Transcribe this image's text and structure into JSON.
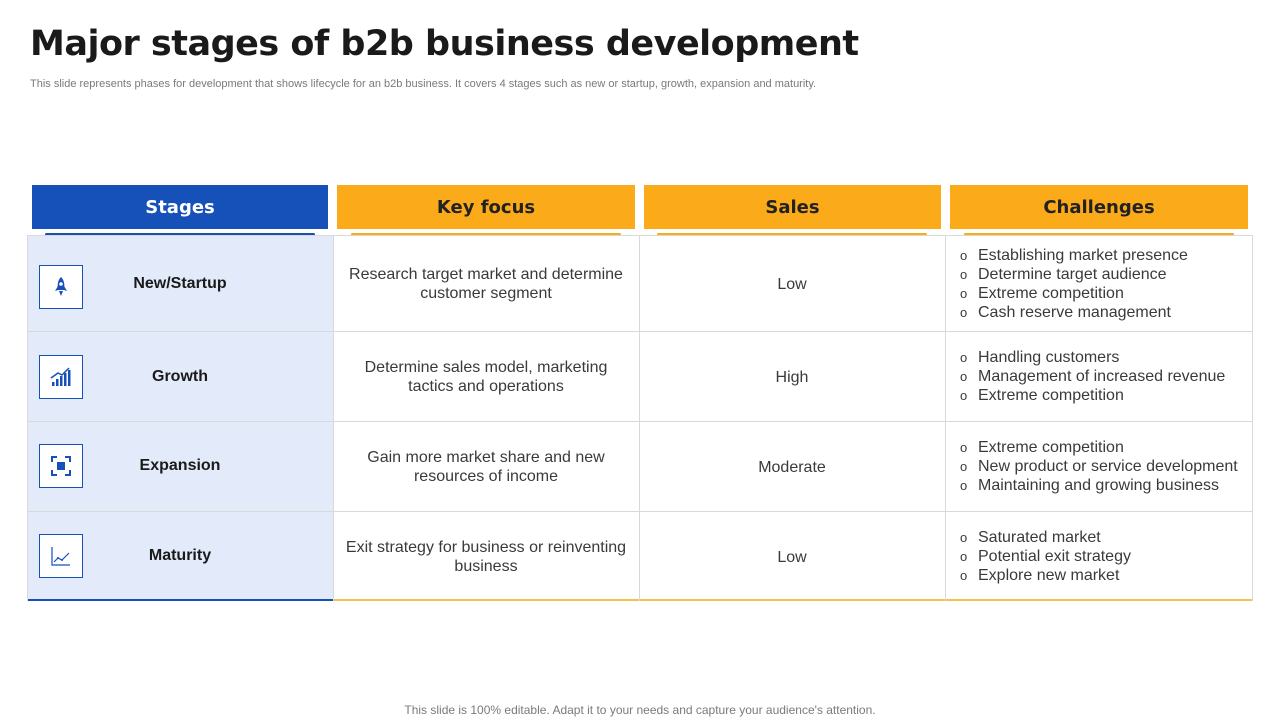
{
  "title": "Major stages of b2b business development",
  "subtitle": "This slide represents phases for development that shows lifecycle for an b2b business. It covers 4 stages such as new or startup, growth, expansion and maturity.",
  "headers": {
    "stages": "Stages",
    "key_focus": "Key focus",
    "sales": "Sales",
    "challenges": "Challenges"
  },
  "rows": [
    {
      "icon": "rocket-icon",
      "stage": "New/Startup",
      "key_focus": "Research target market and determine customer segment",
      "sales": "Low",
      "challenges": [
        "Establishing market presence",
        "Determine target audience",
        "Extreme competition",
        "Cash reserve management"
      ]
    },
    {
      "icon": "growth-chart-icon",
      "stage": "Growth",
      "key_focus": "Determine sales model, marketing tactics and operations",
      "sales": "High",
      "challenges": [
        "Handling customers",
        "Management of increased revenue",
        "Extreme competition"
      ]
    },
    {
      "icon": "expand-icon",
      "stage": "Expansion",
      "key_focus": "Gain more market share and new resources of income",
      "sales": "Moderate",
      "challenges": [
        "Extreme competition",
        "New product or service development",
        "Maintaining and growing business"
      ]
    },
    {
      "icon": "line-chart-icon",
      "stage": "Maturity",
      "key_focus": "Exit strategy for business or reinventing business",
      "sales": "Low",
      "challenges": [
        "Saturated market",
        "Potential exit strategy",
        "Explore new market"
      ]
    }
  ],
  "bullet_symbol": "o",
  "footer": "This slide is 100% editable. Adapt it to your needs and capture your audience's attention.",
  "colors": {
    "primary_blue": "#1650b9",
    "accent_yellow": "#fbaa19",
    "stage_column_bg": "#e3ebfa"
  }
}
